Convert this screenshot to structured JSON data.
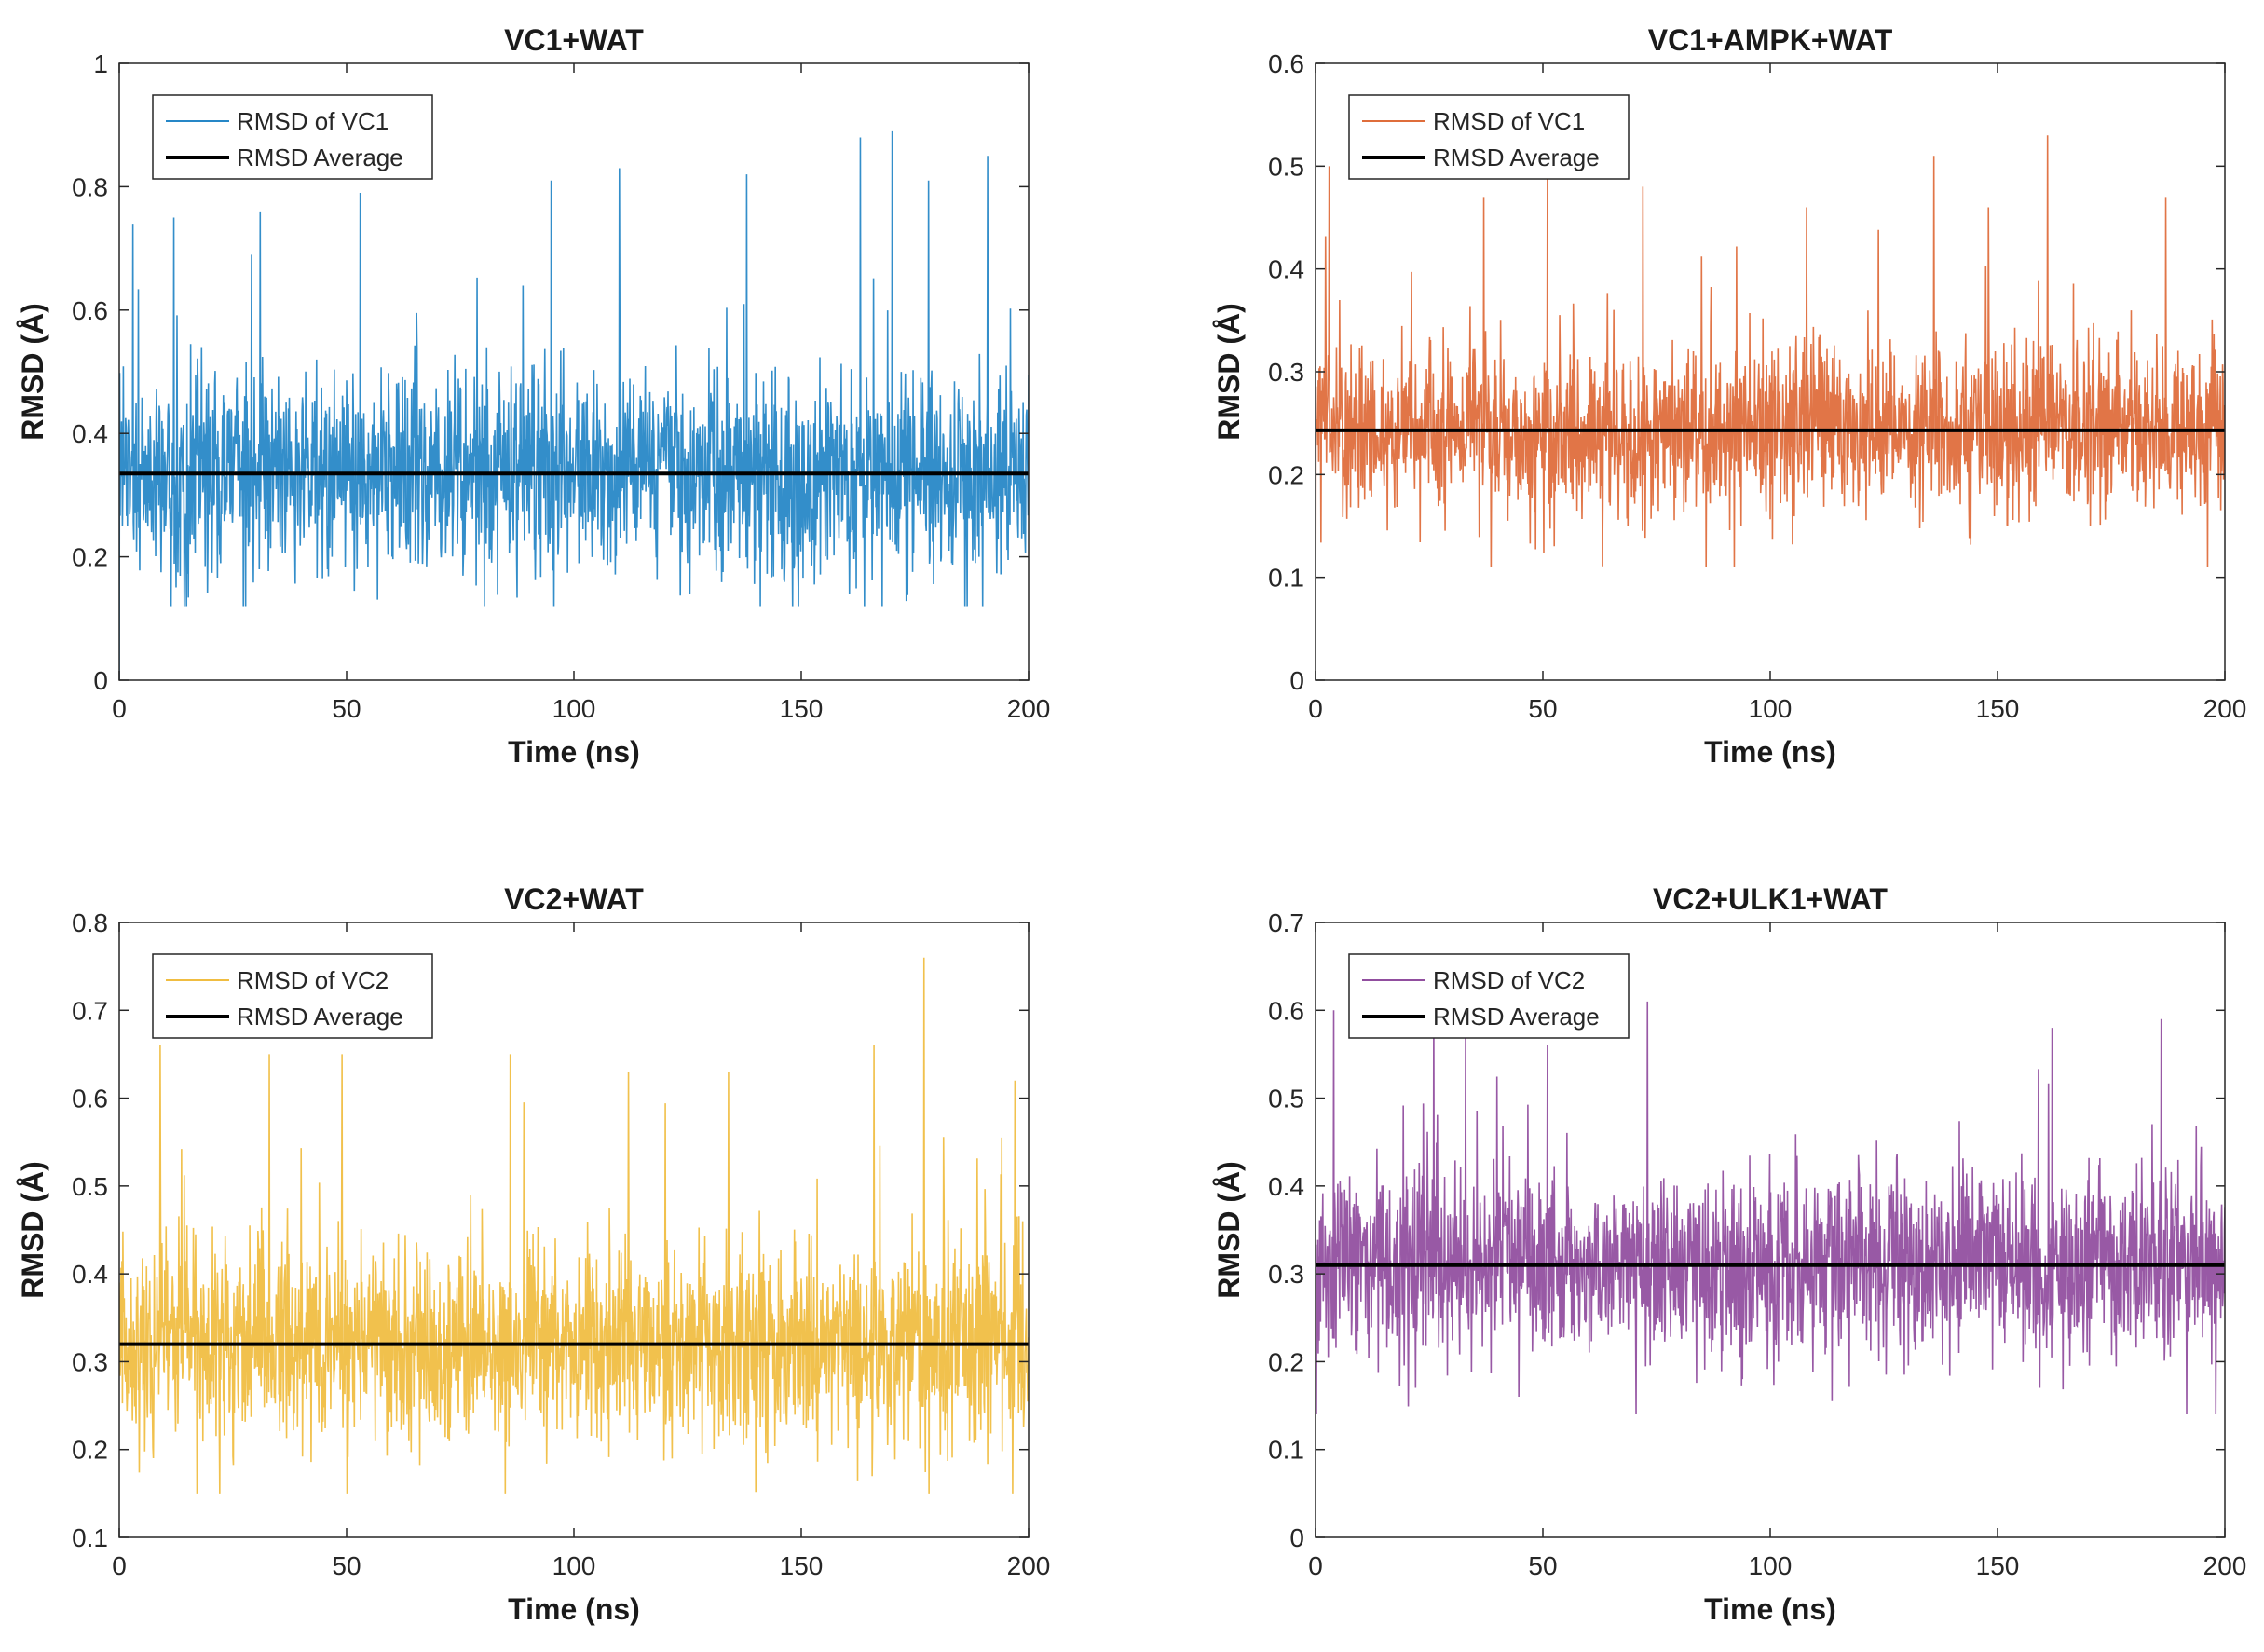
{
  "chart_data": [
    {
      "type": "line",
      "title": "VC1+WAT",
      "xlabel": "Time (ns)",
      "ylabel": "RMSD (Å)",
      "xlim": [
        0,
        200
      ],
      "ylim": [
        0,
        1
      ],
      "xticks": [
        0,
        50,
        100,
        150,
        200
      ],
      "yticks": [
        0,
        0.2,
        0.4,
        0.6,
        0.8,
        1
      ],
      "ytick_labels": [
        "0",
        "0.2",
        "0.4",
        "0.6",
        "0.8",
        "1"
      ],
      "legend_position": "top-left",
      "series": [
        {
          "name": "RMSD of VC1",
          "color": "#0072BD",
          "mean": 0.335,
          "spread": 0.11,
          "min": 0.12,
          "max": 0.89,
          "start": 0.0,
          "peaks": [
            [
              3,
              0.74
            ],
            [
              12,
              0.75
            ],
            [
              31,
              0.76
            ],
            [
              53,
              0.79
            ],
            [
              95,
              0.81
            ],
            [
              110,
              0.83
            ],
            [
              138,
              0.82
            ],
            [
              163,
              0.88
            ],
            [
              170,
              0.89
            ],
            [
              178,
              0.81
            ],
            [
              191,
              0.85
            ]
          ]
        },
        {
          "name": "RMSD Average",
          "color": "#000000",
          "constant": 0.335
        }
      ]
    },
    {
      "type": "line",
      "title": "VC1+AMPK+WAT",
      "xlabel": "Time (ns)",
      "ylabel": "RMSD (Å)",
      "xlim": [
        0,
        200
      ],
      "ylim": [
        0,
        0.6
      ],
      "xticks": [
        0,
        50,
        100,
        150,
        200
      ],
      "yticks": [
        0,
        0.1,
        0.2,
        0.3,
        0.4,
        0.5,
        0.6
      ],
      "ytick_labels": [
        "0",
        "0.1",
        "0.2",
        "0.3",
        "0.4",
        "0.5",
        "0.6"
      ],
      "legend_position": "top-left",
      "series": [
        {
          "name": "RMSD of VC1",
          "color": "#D95319",
          "mean": 0.243,
          "spread": 0.055,
          "min": 0.11,
          "max": 0.53,
          "start": 0.0,
          "peaks": [
            [
              3,
              0.5
            ],
            [
              37,
              0.47
            ],
            [
              51,
              0.49
            ],
            [
              72,
              0.48
            ],
            [
              108,
              0.46
            ],
            [
              136,
              0.51
            ],
            [
              148,
              0.46
            ],
            [
              161,
              0.53
            ],
            [
              187,
              0.47
            ]
          ]
        },
        {
          "name": "RMSD Average",
          "color": "#000000",
          "constant": 0.243
        }
      ]
    },
    {
      "type": "line",
      "title": "VC2+WAT",
      "xlabel": "Time (ns)",
      "ylabel": "RMSD (Å)",
      "xlim": [
        0,
        200
      ],
      "ylim": [
        0.1,
        0.8
      ],
      "xticks": [
        0,
        50,
        100,
        150,
        200
      ],
      "yticks": [
        0.1,
        0.2,
        0.3,
        0.4,
        0.5,
        0.6,
        0.7,
        0.8
      ],
      "ytick_labels": [
        "0.1",
        "0.2",
        "0.3",
        "0.4",
        "0.5",
        "0.6",
        "0.7",
        "0.8"
      ],
      "legend_position": "top-left",
      "series": [
        {
          "name": "RMSD of VC2",
          "color": "#EDB120",
          "mean": 0.32,
          "spread": 0.075,
          "min": 0.15,
          "max": 0.76,
          "start": 0.39,
          "peaks": [
            [
              9,
              0.66
            ],
            [
              33,
              0.65
            ],
            [
              49,
              0.65
            ],
            [
              86,
              0.65
            ],
            [
              112,
              0.63
            ],
            [
              134,
              0.63
            ],
            [
              166,
              0.66
            ],
            [
              177,
              0.76
            ],
            [
              197,
              0.62
            ]
          ]
        },
        {
          "name": "RMSD Average",
          "color": "#000000",
          "constant": 0.32
        }
      ]
    },
    {
      "type": "line",
      "title": "VC2+ULK1+WAT",
      "xlabel": "Time (ns)",
      "ylabel": "RMSD (Å)",
      "xlim": [
        0,
        200
      ],
      "ylim": [
        0,
        0.7
      ],
      "xticks": [
        0,
        50,
        100,
        150,
        200
      ],
      "yticks": [
        0,
        0.1,
        0.2,
        0.3,
        0.4,
        0.5,
        0.6,
        0.7
      ],
      "ytick_labels": [
        "0",
        "0.1",
        "0.2",
        "0.3",
        "0.4",
        "0.5",
        "0.6",
        "0.7"
      ],
      "legend_position": "top-left",
      "series": [
        {
          "name": "RMSD of VC2",
          "color": "#7E2F8E",
          "mean": 0.31,
          "spread": 0.07,
          "min": 0.14,
          "max": 0.61,
          "start": 0.0,
          "peaks": [
            [
              4,
              0.6
            ],
            [
              26,
              0.6
            ],
            [
              33,
              0.58
            ],
            [
              51,
              0.56
            ],
            [
              73,
              0.61
            ],
            [
              162,
              0.58
            ],
            [
              186,
              0.59
            ]
          ]
        },
        {
          "name": "RMSD Average",
          "color": "#000000",
          "constant": 0.31
        }
      ]
    }
  ]
}
